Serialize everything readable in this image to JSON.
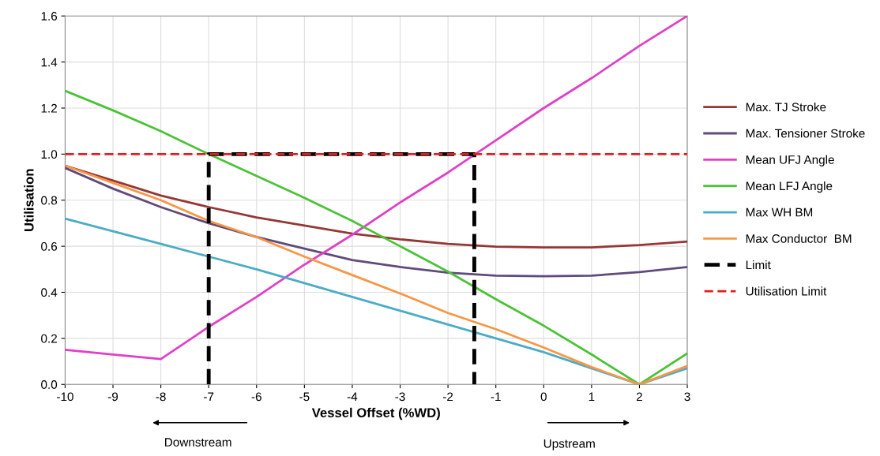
{
  "chart_data": {
    "type": "line",
    "xlabel": "Vessel Offset (%WD)",
    "ylabel": "Utilisation",
    "x": [
      -10,
      -9,
      -8,
      -7,
      -6,
      -5,
      -4,
      -3,
      -2,
      -1,
      0,
      1,
      2,
      3
    ],
    "series": [
      {
        "name": "Max. TJ Stroke",
        "color": "#953735",
        "values": [
          0.95,
          0.885,
          0.82,
          0.77,
          0.725,
          0.69,
          0.655,
          0.63,
          0.61,
          0.598,
          0.595,
          0.595,
          0.605,
          0.62
        ]
      },
      {
        "name": "Max. Tensioner Stroke",
        "color": "#604a7b",
        "values": [
          0.94,
          0.85,
          0.77,
          0.7,
          0.64,
          0.59,
          0.54,
          0.51,
          0.485,
          0.472,
          0.47,
          0.472,
          0.488,
          0.51
        ]
      },
      {
        "name": "Mean UFJ Angle",
        "color": "#e040c8",
        "values": [
          0.15,
          0.13,
          0.11,
          0.25,
          0.38,
          0.52,
          0.65,
          0.79,
          0.92,
          1.06,
          1.2,
          1.33,
          1.47,
          1.6
        ]
      },
      {
        "name": "Mean LFJ Angle",
        "color": "#4bc336",
        "values": [
          1.275,
          1.19,
          1.1,
          1.0,
          0.905,
          0.81,
          0.71,
          0.6,
          0.49,
          0.37,
          0.255,
          0.13,
          0.0,
          0.135
        ]
      },
      {
        "name": "Max WH BM",
        "color": "#4bacc6",
        "values": [
          0.72,
          0.665,
          0.61,
          0.555,
          0.5,
          0.44,
          0.38,
          0.32,
          0.26,
          0.2,
          0.14,
          0.07,
          0.0,
          0.07
        ]
      },
      {
        "name": "Max Conductor  BM",
        "color": "#f79646",
        "values": [
          0.95,
          0.875,
          0.8,
          0.71,
          0.64,
          0.555,
          0.475,
          0.395,
          0.31,
          0.24,
          0.16,
          0.075,
          0.0,
          0.08
        ]
      },
      {
        "name": "Limit",
        "color": "#000000",
        "line_style": "dashed",
        "x": [
          -7,
          -7,
          -1.45,
          -1.45
        ],
        "values": [
          0,
          1,
          1,
          0
        ]
      },
      {
        "name": "Utilisation Limit",
        "color": "#e02020",
        "line_style": "dashed",
        "x": [
          -10,
          3
        ],
        "values": [
          1,
          1
        ]
      }
    ],
    "xlim": [
      -10,
      3
    ],
    "xticks": [
      -10,
      -9,
      -8,
      -7,
      -6,
      -5,
      -4,
      -3,
      -2,
      -1,
      0,
      1,
      2,
      3
    ],
    "ylim": [
      0,
      1.6
    ],
    "yticks": [
      {
        "value": 0,
        "label": "0.0"
      },
      {
        "value": 0.2,
        "label": "0.2"
      },
      {
        "value": 0.4,
        "label": "0.4"
      },
      {
        "value": 0.6,
        "label": "0.6"
      },
      {
        "value": 0.8,
        "label": "0.8"
      },
      {
        "value": 1.0,
        "label": "1.0"
      },
      {
        "value": 1.2,
        "label": "1.2"
      },
      {
        "value": 1.4,
        "label": "1.4"
      },
      {
        "value": 1.6,
        "label": "1.6"
      }
    ],
    "grid": true,
    "legend": "right",
    "line_style": "solid",
    "marker": "none",
    "annotations": [
      "Downstream",
      "Upstream"
    ]
  }
}
